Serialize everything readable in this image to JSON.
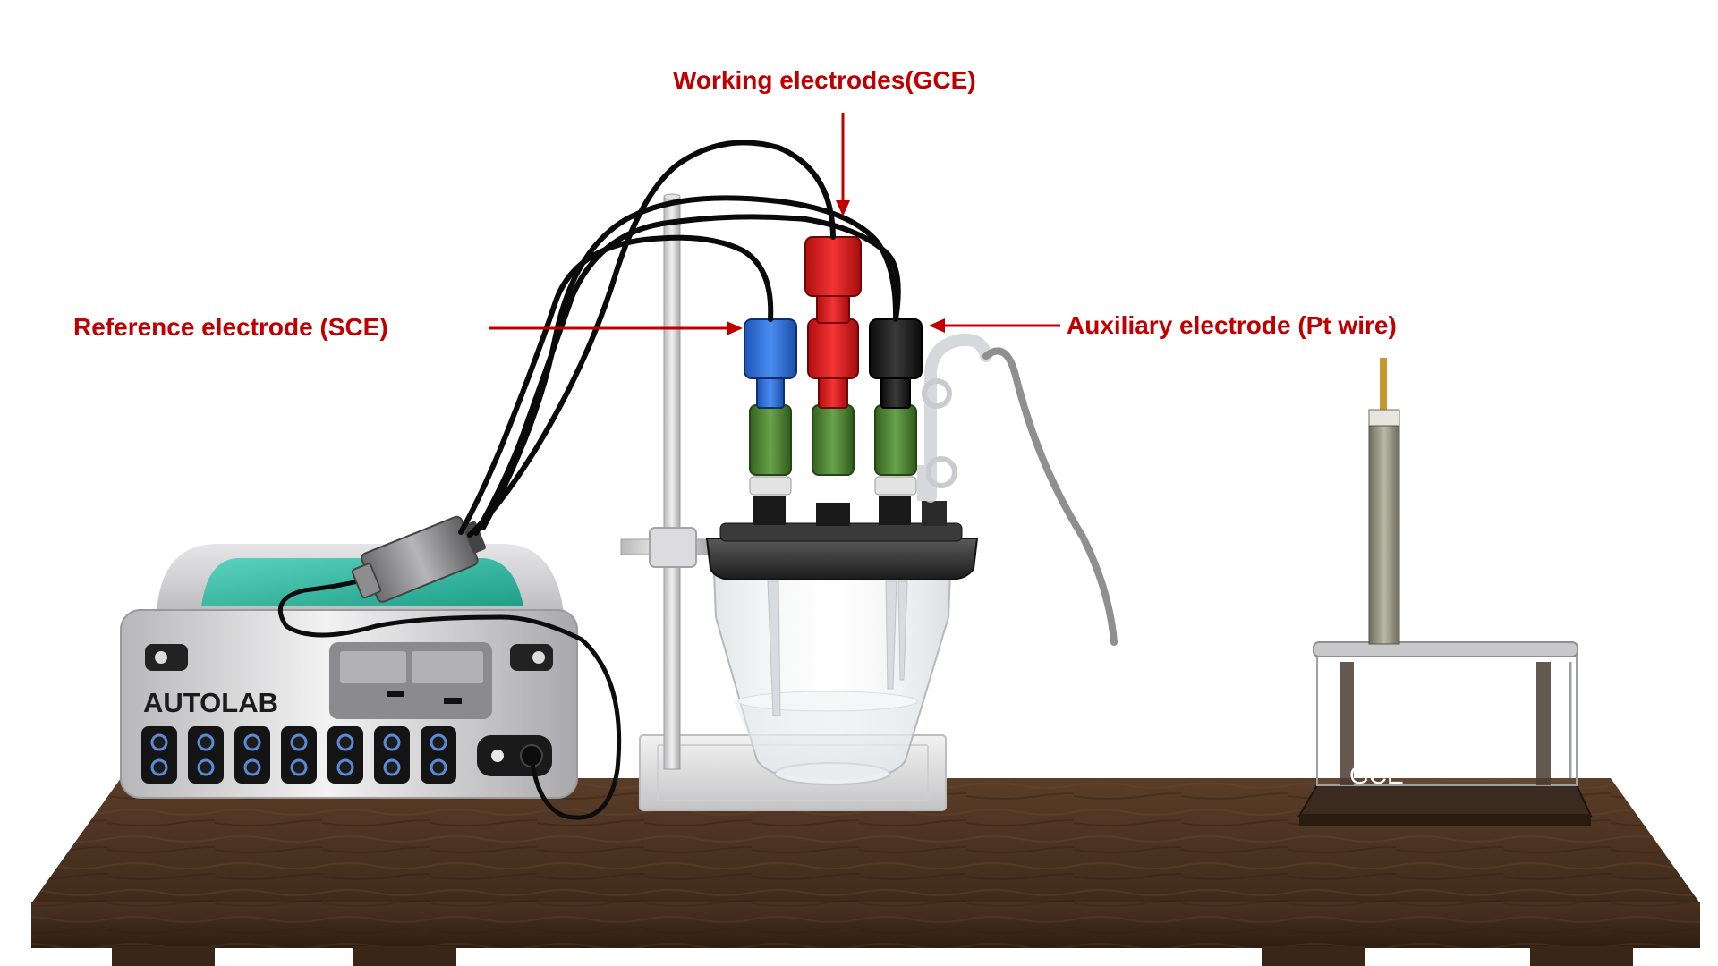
{
  "labels": {
    "working": "Working electrodes(GCE)",
    "reference": "Reference electrode (SCE)",
    "auxiliary": "Auxiliary electrode (Pt wire)",
    "device": "AUTOLAB",
    "stand_gce": "GCE"
  },
  "colors": {
    "callout": "#c00000",
    "wood": "#4a3222",
    "wood_dark": "#33210f",
    "device_screen": "#3dbfa8",
    "plug_blue": "#2f6fd6",
    "plug_red": "#e01b1b",
    "plug_black": "#1a1a1a",
    "sleeve_green": "#4f8a36"
  }
}
